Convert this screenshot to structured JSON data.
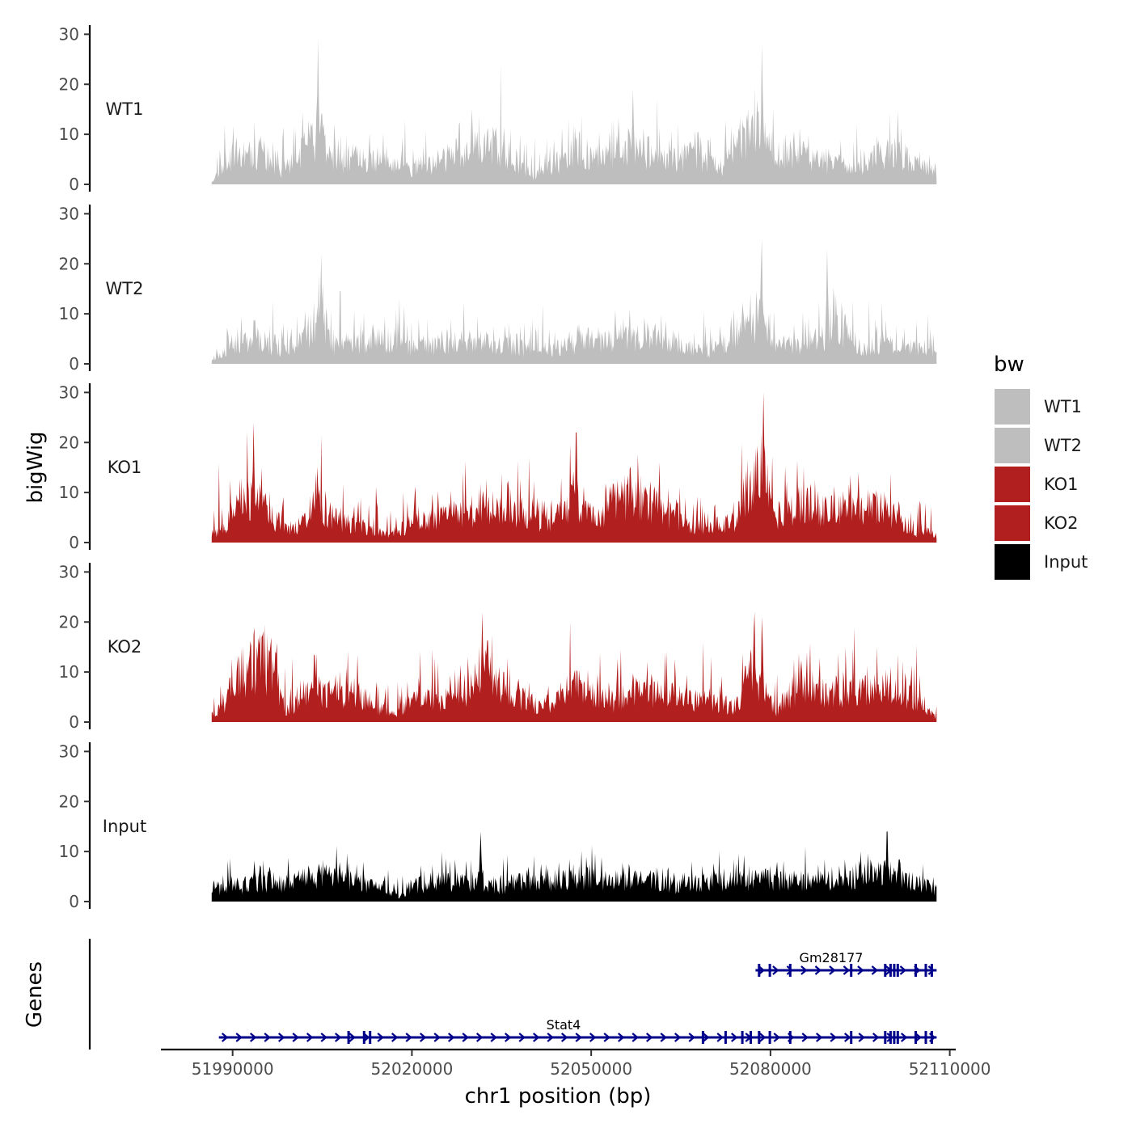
{
  "chart_data": {
    "type": "area",
    "ylabel": "bigWig",
    "xlabel": "chr1 position (bp)",
    "ylim": [
      0,
      32
    ],
    "xlim": [
      51978000,
      52111000
    ],
    "data_range": [
      51986500,
      52107800
    ],
    "y_ticks": [
      0,
      10,
      20,
      30
    ],
    "x_ticks": [
      51990000,
      52020000,
      52050000,
      52080000,
      52110000
    ],
    "x_tick_labels": [
      "51990000",
      "52020000",
      "52050000",
      "52080000",
      "52110000"
    ],
    "legend": {
      "title": "bw",
      "placement": "right",
      "entries": [
        {
          "label": "WT1",
          "color": "#bebebe"
        },
        {
          "label": "WT2",
          "color": "#bebebe"
        },
        {
          "label": "KO1",
          "color": "#b21f1f"
        },
        {
          "label": "KO2",
          "color": "#b21f1f"
        },
        {
          "label": "Input",
          "color": "#000000"
        }
      ]
    },
    "series": [
      {
        "name": "WT1",
        "color": "#bebebe",
        "seed": 11,
        "base": 4,
        "noise": 5,
        "profile": [
          [
            51986500,
            1
          ],
          [
            51990000,
            7
          ],
          [
            51995000,
            8
          ],
          [
            51998000,
            3
          ],
          [
            52003000,
            10
          ],
          [
            52004500,
            14
          ],
          [
            52006500,
            5
          ],
          [
            52011000,
            7
          ],
          [
            52016000,
            5
          ],
          [
            52020000,
            4
          ],
          [
            52025000,
            6
          ],
          [
            52030000,
            9
          ],
          [
            52033000,
            10
          ],
          [
            52036000,
            8
          ],
          [
            52040000,
            2
          ],
          [
            52043000,
            4
          ],
          [
            52048000,
            9
          ],
          [
            52052000,
            6
          ],
          [
            52057000,
            10
          ],
          [
            52062000,
            6
          ],
          [
            52067000,
            7
          ],
          [
            52072000,
            4
          ],
          [
            52075000,
            11
          ],
          [
            52078000,
            14
          ],
          [
            52080000,
            8
          ],
          [
            52085000,
            7
          ],
          [
            52090000,
            5
          ],
          [
            52095000,
            4
          ],
          [
            52100000,
            9
          ],
          [
            52104000,
            5
          ],
          [
            52107800,
            3
          ]
        ],
        "peaks": [
          [
            52004300,
            29
          ],
          [
            52078600,
            28
          ],
          [
            52057000,
            19
          ],
          [
            52030000,
            15
          ]
        ]
      },
      {
        "name": "WT2",
        "color": "#bebebe",
        "seed": 23,
        "base": 3,
        "noise": 4,
        "profile": [
          [
            51986500,
            1
          ],
          [
            51990000,
            5
          ],
          [
            51995000,
            6
          ],
          [
            51998000,
            3
          ],
          [
            52003000,
            8
          ],
          [
            52004800,
            12
          ],
          [
            52007000,
            4
          ],
          [
            52012000,
            5
          ],
          [
            52016000,
            6
          ],
          [
            52020000,
            4
          ],
          [
            52025000,
            5
          ],
          [
            52030000,
            6
          ],
          [
            52035000,
            5
          ],
          [
            52040000,
            3
          ],
          [
            52045000,
            4
          ],
          [
            52050000,
            6
          ],
          [
            52055000,
            6
          ],
          [
            52060000,
            7
          ],
          [
            52065000,
            4
          ],
          [
            52070000,
            3
          ],
          [
            52075000,
            8
          ],
          [
            52078000,
            11
          ],
          [
            52080000,
            6
          ],
          [
            52085000,
            5
          ],
          [
            52089000,
            7
          ],
          [
            52091000,
            10
          ],
          [
            52095000,
            4
          ],
          [
            52100000,
            5
          ],
          [
            52104000,
            4
          ],
          [
            52107800,
            2
          ]
        ],
        "peaks": [
          [
            52004800,
            22
          ],
          [
            52078500,
            25
          ],
          [
            52089500,
            23
          ]
        ]
      },
      {
        "name": "KO1",
        "color": "#b21f1f",
        "seed": 37,
        "base": 5,
        "noise": 5,
        "profile": [
          [
            51986500,
            2
          ],
          [
            51988500,
            3
          ],
          [
            51991000,
            10
          ],
          [
            51994000,
            12
          ],
          [
            51997000,
            6
          ],
          [
            51999000,
            3
          ],
          [
            52003000,
            6
          ],
          [
            52004500,
            10
          ],
          [
            52007000,
            6
          ],
          [
            52010000,
            5
          ],
          [
            52013000,
            3
          ],
          [
            52016000,
            2
          ],
          [
            52020000,
            5
          ],
          [
            52025000,
            6
          ],
          [
            52030000,
            8
          ],
          [
            52033000,
            9
          ],
          [
            52036000,
            8
          ],
          [
            52040000,
            6
          ],
          [
            52044000,
            6
          ],
          [
            52047000,
            12
          ],
          [
            52050000,
            6
          ],
          [
            52054000,
            10
          ],
          [
            52058000,
            12
          ],
          [
            52062000,
            8
          ],
          [
            52066000,
            4
          ],
          [
            52070000,
            4
          ],
          [
            52074000,
            5
          ],
          [
            52077000,
            15
          ],
          [
            52079000,
            16
          ],
          [
            52081000,
            6
          ],
          [
            52085000,
            10
          ],
          [
            52089000,
            8
          ],
          [
            52093000,
            7
          ],
          [
            52097000,
            9
          ],
          [
            52100000,
            8
          ],
          [
            52104000,
            3
          ],
          [
            52107800,
            2
          ]
        ],
        "peaks": [
          [
            51993500,
            24
          ],
          [
            52078800,
            30
          ],
          [
            52047500,
            22
          ]
        ]
      },
      {
        "name": "KO2",
        "color": "#b21f1f",
        "seed": 53,
        "base": 5,
        "noise": 5,
        "profile": [
          [
            51986500,
            2
          ],
          [
            51988500,
            4
          ],
          [
            51991000,
            12
          ],
          [
            51994000,
            15
          ],
          [
            51997000,
            14
          ],
          [
            51998500,
            3
          ],
          [
            52001000,
            4
          ],
          [
            52004000,
            9
          ],
          [
            52007000,
            6
          ],
          [
            52010000,
            8
          ],
          [
            52014000,
            4
          ],
          [
            52017000,
            2
          ],
          [
            52021000,
            6
          ],
          [
            52025000,
            5
          ],
          [
            52029000,
            8
          ],
          [
            52031000,
            14
          ],
          [
            52034000,
            10
          ],
          [
            52037000,
            7
          ],
          [
            52041000,
            4
          ],
          [
            52044000,
            5
          ],
          [
            52047000,
            10
          ],
          [
            52050000,
            6
          ],
          [
            52054000,
            5
          ],
          [
            52058000,
            8
          ],
          [
            52062000,
            7
          ],
          [
            52066000,
            6
          ],
          [
            52070000,
            5
          ],
          [
            52074000,
            4
          ],
          [
            52077000,
            14
          ],
          [
            52079000,
            9
          ],
          [
            52081000,
            3
          ],
          [
            52085000,
            10
          ],
          [
            52089000,
            7
          ],
          [
            52093000,
            8
          ],
          [
            52097000,
            8
          ],
          [
            52100000,
            9
          ],
          [
            52104000,
            6
          ],
          [
            52107800,
            1
          ]
        ],
        "peaks": [
          [
            52031800,
            22
          ],
          [
            52077300,
            22
          ],
          [
            52078600,
            21
          ]
        ]
      },
      {
        "name": "Input",
        "color": "#000000",
        "seed": 71,
        "base": 3,
        "noise": 3,
        "profile": [
          [
            51986500,
            3
          ],
          [
            51990000,
            4
          ],
          [
            51995000,
            5
          ],
          [
            52000000,
            5
          ],
          [
            52005000,
            6
          ],
          [
            52010000,
            5
          ],
          [
            52016000,
            3
          ],
          [
            52018000,
            1
          ],
          [
            52020000,
            4
          ],
          [
            52025000,
            5
          ],
          [
            52030000,
            5
          ],
          [
            52035000,
            4
          ],
          [
            52040000,
            5
          ],
          [
            52045000,
            6
          ],
          [
            52050000,
            6
          ],
          [
            52055000,
            5
          ],
          [
            52060000,
            5
          ],
          [
            52065000,
            4
          ],
          [
            52070000,
            5
          ],
          [
            52075000,
            5
          ],
          [
            52080000,
            6
          ],
          [
            52085000,
            5
          ],
          [
            52090000,
            5
          ],
          [
            52095000,
            6
          ],
          [
            52100000,
            7
          ],
          [
            52104000,
            5
          ],
          [
            52107800,
            3
          ]
        ],
        "peaks": [
          [
            52031500,
            14
          ],
          [
            52099500,
            14
          ]
        ]
      }
    ],
    "genes": [
      {
        "name": "Gm28177",
        "start": 52077500,
        "end": 52107800,
        "strand": "+",
        "exons": [
          52078100,
          52079900,
          52083300,
          52093500,
          52099200,
          52100100,
          52100700,
          52101300,
          52104300,
          52106000,
          52107000
        ]
      },
      {
        "name": "Stat4",
        "start": 51987700,
        "end": 52107800,
        "strand": "+",
        "exons": [
          52009400,
          52012000,
          52013000,
          52068700,
          52072500,
          52075300,
          52076700,
          52078100,
          52079900,
          52083300,
          52093500,
          52099200,
          52100100,
          52100700,
          52101300,
          52104300,
          52106000,
          52107000
        ]
      }
    ]
  }
}
